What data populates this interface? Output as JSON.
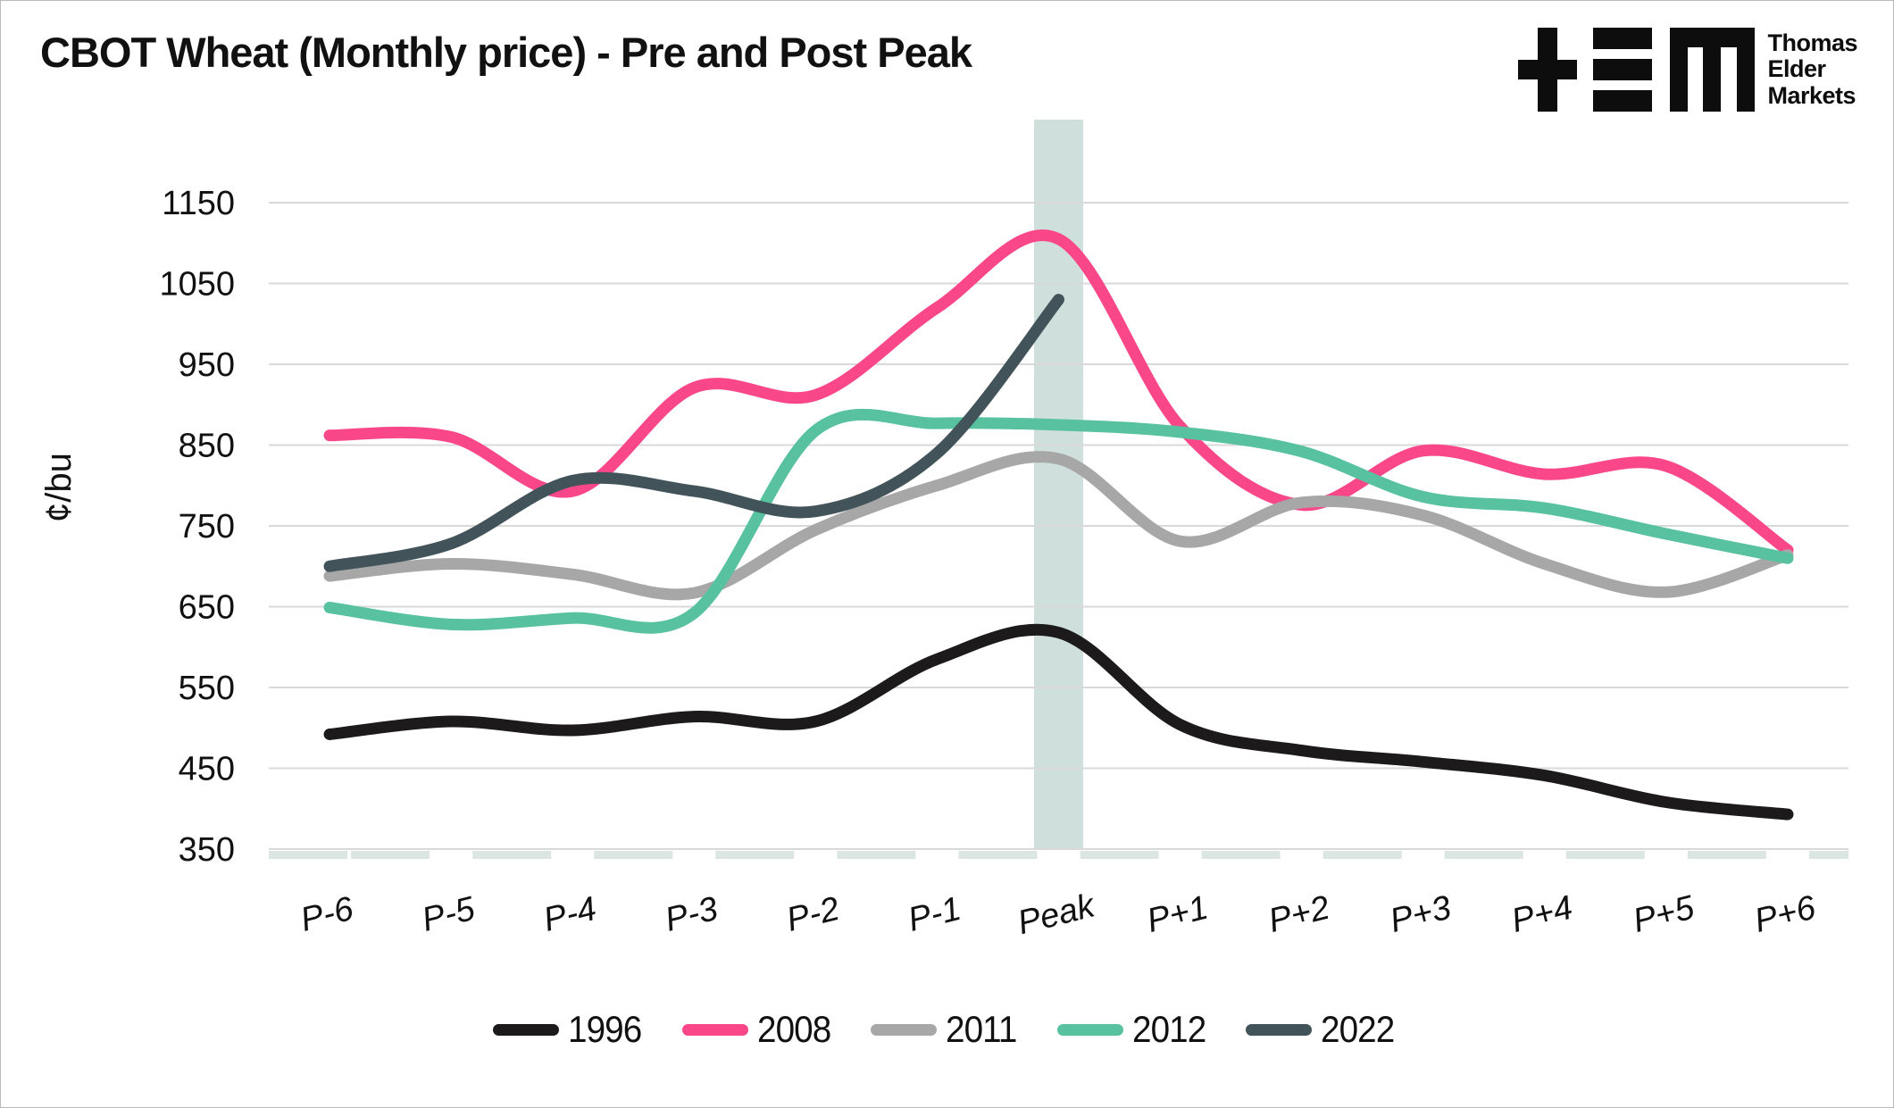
{
  "header": {
    "title": "CBOT Wheat (Monthly price) - Pre and Post Peak"
  },
  "logo": {
    "mark_name": "tem-logo-mark",
    "lines": [
      "Thomas",
      "Elder",
      "Markets"
    ]
  },
  "chart_data": {
    "type": "line",
    "title": "CBOT Wheat (Monthly price) - Pre and Post Peak",
    "xlabel": "",
    "ylabel": "¢/bu",
    "categories": [
      "P-6",
      "P-5",
      "P-4",
      "P-3",
      "P-2",
      "P-1",
      "Peak",
      "P+1",
      "P+2",
      "P+3",
      "P+4",
      "P+5",
      "P+6"
    ],
    "y_ticks": [
      1150,
      1050,
      950,
      850,
      750,
      650,
      550,
      450,
      350
    ],
    "ylim": [
      350,
      1200
    ],
    "grid": "horizontal",
    "legend_position": "bottom",
    "highlight_band": {
      "category": "Peak",
      "color": "#cfdfdc"
    },
    "colors": {
      "grid": "#d9d9d9",
      "tick": "#dbe6e3",
      "text": "#111111"
    },
    "series": [
      {
        "name": "1996",
        "color": "#1d1a1b",
        "values": [
          492,
          508,
          497,
          514,
          508,
          585,
          618,
          504,
          472,
          458,
          441,
          408,
          393
        ]
      },
      {
        "name": "2008",
        "color": "#f9478a",
        "values": [
          862,
          860,
          793,
          921,
          912,
          1020,
          1105,
          873,
          776,
          843,
          814,
          824,
          720
        ]
      },
      {
        "name": "2011",
        "color": "#a7a7a7",
        "values": [
          688,
          703,
          690,
          667,
          745,
          800,
          833,
          731,
          779,
          763,
          703,
          668,
          714
        ]
      },
      {
        "name": "2012",
        "color": "#57c1a0",
        "values": [
          649,
          628,
          636,
          642,
          868,
          877,
          875,
          866,
          842,
          786,
          772,
          740,
          710
        ]
      },
      {
        "name": "2022",
        "color": "#42545a",
        "values": [
          700,
          728,
          806,
          793,
          768,
          840,
          1030,
          null,
          null,
          null,
          null,
          null,
          null
        ]
      }
    ]
  }
}
